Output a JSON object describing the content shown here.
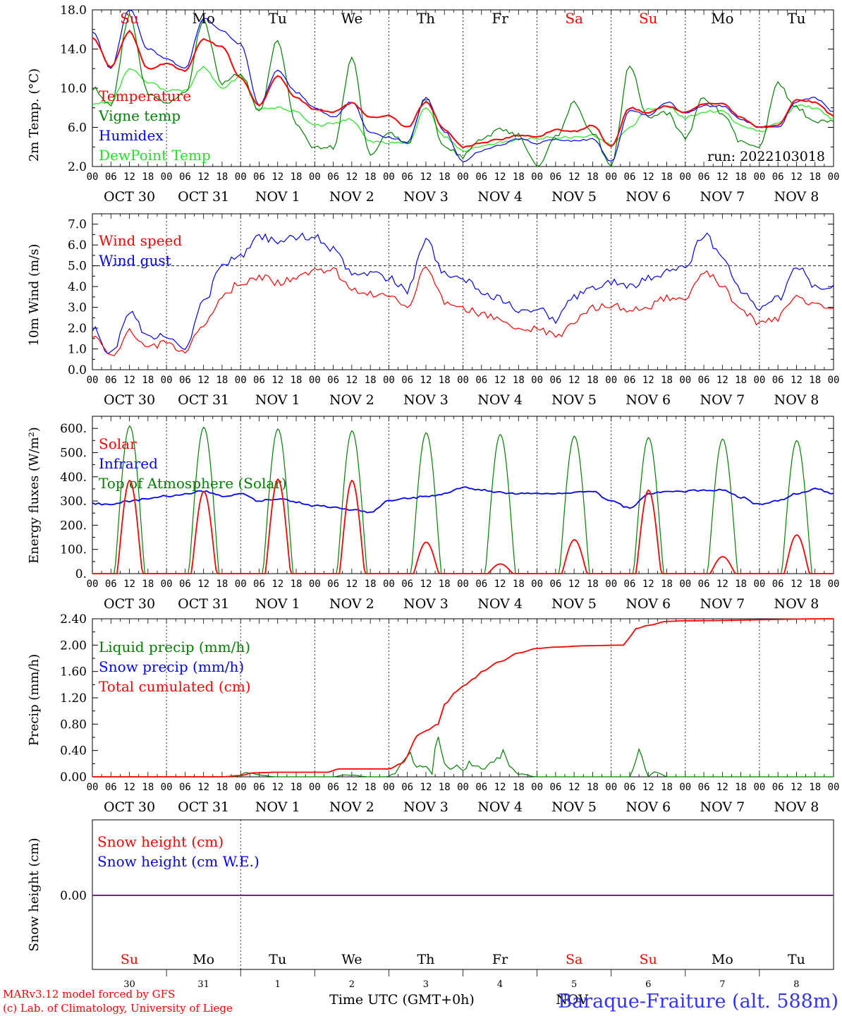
{
  "days": [
    {
      "abbr": "Su",
      "weekend": true,
      "date_label": "OCT 30",
      "day_num": "30"
    },
    {
      "abbr": "Mo",
      "weekend": false,
      "date_label": "OCT 31",
      "day_num": "31"
    },
    {
      "abbr": "Tu",
      "weekend": false,
      "date_label": "NOV  1",
      "day_num": "1"
    },
    {
      "abbr": "We",
      "weekend": false,
      "date_label": "NOV  2",
      "day_num": "2"
    },
    {
      "abbr": "Th",
      "weekend": false,
      "date_label": "NOV  3",
      "day_num": "3"
    },
    {
      "abbr": "Fr",
      "weekend": false,
      "date_label": "NOV  4",
      "day_num": "4"
    },
    {
      "abbr": "Sa",
      "weekend": true,
      "date_label": "NOV  5",
      "day_num": "5"
    },
    {
      "abbr": "Su",
      "weekend": true,
      "date_label": "NOV  6",
      "day_num": "6"
    },
    {
      "abbr": "Mo",
      "weekend": false,
      "date_label": "NOV  7",
      "day_num": "7"
    },
    {
      "abbr": "Tu",
      "weekend": false,
      "date_label": "NOV  8",
      "day_num": "8"
    }
  ],
  "hour_ticks": [
    "00",
    "06",
    "12",
    "18"
  ],
  "run_label": "run: 2022103018",
  "footer": {
    "model_line": "MARv3.12 model forced by GFS",
    "lab_line": "(c) Lab. of Climatology, University of Liege",
    "time_axis_label": "Time UTC (GMT+0h)",
    "month_label": "NOV",
    "station": "Baraque-Fraiture (alt. 588m)"
  },
  "colors": {
    "red": "#ff0000",
    "green": "#008000",
    "blue": "#0000ff",
    "lightgreen": "#1ee61e",
    "purple": "#7a1fa0",
    "weekend": "#ff0000",
    "weekday": "#000000",
    "footer_blue": "#3333ff"
  },
  "chart_data": [
    {
      "id": "temperature",
      "type": "line",
      "ylabel": "2m Temp. (°C)",
      "ylim": [
        2.0,
        18.0
      ],
      "yticks": [
        "2.0",
        "6.0",
        "10.0",
        "14.0",
        "18.0"
      ],
      "ytick_values": [
        2,
        6,
        10,
        14,
        18
      ],
      "x_hours": [
        0,
        6,
        12,
        18,
        24,
        30,
        36,
        42,
        48,
        54,
        60,
        66,
        72,
        78,
        84,
        90,
        96,
        102,
        108,
        114,
        120,
        126,
        132,
        138,
        144,
        150,
        156,
        162,
        168,
        174,
        180,
        186,
        192,
        198,
        204,
        210,
        216,
        222,
        228,
        234,
        240
      ],
      "series": [
        {
          "name": "Temperature",
          "color": "red",
          "values": [
            15.2,
            12.2,
            15.8,
            12.0,
            12.5,
            11.8,
            15.0,
            14.2,
            11.0,
            8.2,
            11.2,
            9.0,
            7.8,
            7.6,
            8.5,
            7.0,
            7.2,
            6.0,
            8.6,
            5.8,
            4.0,
            4.4,
            4.8,
            5.2,
            5.0,
            5.8,
            5.6,
            6.2,
            4.0,
            8.0,
            7.5,
            8.2,
            7.5,
            8.4,
            8.4,
            7.0,
            6.0,
            6.2,
            8.8,
            8.6,
            7.2
          ]
        },
        {
          "name": "Vigne temp",
          "color": "green",
          "values": [
            10.0,
            8.2,
            17.5,
            9.5,
            8.5,
            9.5,
            17.0,
            10.5,
            11.5,
            7.5,
            15.0,
            6.2,
            4.0,
            4.0,
            13.0,
            3.0,
            5.5,
            4.2,
            9.0,
            4.0,
            3.0,
            4.8,
            5.8,
            5.2,
            2.0,
            5.0,
            8.5,
            5.5,
            2.0,
            12.3,
            7.0,
            7.5,
            5.0,
            9.0,
            7.5,
            4.5,
            4.2,
            10.5,
            8.0,
            6.5,
            6.5
          ]
        },
        {
          "name": "Humidex",
          "color": "blue",
          "values": [
            15.8,
            12.0,
            18.2,
            14.0,
            13.0,
            12.0,
            17.2,
            15.8,
            14.5,
            8.2,
            11.8,
            9.6,
            8.0,
            7.0,
            8.6,
            5.5,
            5.0,
            4.5,
            9.0,
            5.6,
            2.5,
            3.6,
            4.2,
            4.8,
            4.4,
            4.8,
            4.6,
            4.8,
            2.5,
            7.8,
            7.2,
            8.6,
            7.4,
            8.2,
            8.2,
            6.8,
            6.0,
            6.0,
            8.6,
            9.0,
            7.6
          ]
        },
        {
          "name": "DewPoint Temp",
          "color": "lightgreen",
          "values": [
            8.4,
            8.6,
            12.0,
            10.6,
            9.8,
            9.8,
            12.2,
            10.0,
            11.2,
            7.8,
            8.0,
            7.6,
            6.2,
            6.4,
            6.8,
            4.6,
            4.4,
            4.3,
            8.0,
            5.0,
            3.6,
            4.0,
            4.4,
            4.8,
            4.8,
            5.0,
            5.0,
            5.2,
            4.2,
            6.0,
            7.8,
            8.2,
            7.0,
            7.6,
            7.6,
            6.2,
            5.6,
            6.4,
            8.2,
            8.0,
            6.8
          ]
        }
      ]
    },
    {
      "id": "wind",
      "type": "line",
      "ylabel": "10m Wind (m/s)",
      "ylim": [
        0.0,
        7.5
      ],
      "yticks": [
        "0.0",
        "1.0",
        "2.0",
        "3.0",
        "4.0",
        "5.0",
        "6.0",
        "7.0"
      ],
      "ytick_values": [
        0,
        1,
        2,
        3,
        4,
        5,
        6,
        7
      ],
      "ref_line": 5.0,
      "x_hours": [
        0,
        6,
        12,
        18,
        24,
        30,
        36,
        42,
        48,
        54,
        60,
        66,
        72,
        78,
        84,
        90,
        96,
        102,
        108,
        114,
        120,
        126,
        132,
        138,
        144,
        150,
        156,
        162,
        168,
        174,
        180,
        186,
        192,
        198,
        204,
        210,
        216,
        222,
        228,
        234,
        240
      ],
      "series": [
        {
          "name": "Wind speed",
          "color": "red",
          "values": [
            1.6,
            0.6,
            1.8,
            1.0,
            1.4,
            0.8,
            2.2,
            3.5,
            4.2,
            4.5,
            4.2,
            4.4,
            4.8,
            4.8,
            3.8,
            3.6,
            3.5,
            3.0,
            4.8,
            3.3,
            2.9,
            2.7,
            2.5,
            2.0,
            2.0,
            1.6,
            2.3,
            3.0,
            3.1,
            2.8,
            3.0,
            3.5,
            3.5,
            4.8,
            4.0,
            2.8,
            2.3,
            2.5,
            3.5,
            3.2,
            3.0
          ]
        },
        {
          "name": "Wind gust",
          "color": "blue",
          "values": [
            2.0,
            0.7,
            2.8,
            1.5,
            1.7,
            1.0,
            3.2,
            5.0,
            5.5,
            6.4,
            6.2,
            6.4,
            6.4,
            5.8,
            4.6,
            4.7,
            4.4,
            3.8,
            6.2,
            4.6,
            4.4,
            3.8,
            3.4,
            2.8,
            3.0,
            2.4,
            3.5,
            4.0,
            4.2,
            4.0,
            4.4,
            4.7,
            5.0,
            6.5,
            5.5,
            3.8,
            3.0,
            3.4,
            5.0,
            4.0,
            4.0
          ]
        }
      ]
    },
    {
      "id": "energy",
      "type": "line",
      "ylabel": "Energy fluxes (W/m²)",
      "ylim": [
        0,
        650
      ],
      "yticks": [
        "0.",
        "100.",
        "200.",
        "300.",
        "400.",
        "500.",
        "600."
      ],
      "ytick_values": [
        0,
        100,
        200,
        300,
        400,
        500,
        600
      ],
      "series": [
        {
          "name": "Solar",
          "color": "red",
          "daily_peaks": [
            385,
            340,
            390,
            385,
            130,
            40,
            140,
            345,
            70,
            160
          ]
        },
        {
          "name": "Infrared",
          "color": "blue",
          "x_hours": [
            0,
            6,
            12,
            18,
            24,
            30,
            36,
            42,
            48,
            54,
            60,
            66,
            72,
            78,
            84,
            90,
            96,
            102,
            108,
            114,
            120,
            126,
            132,
            138,
            144,
            150,
            156,
            162,
            168,
            174,
            180,
            186,
            192,
            198,
            204,
            210,
            216,
            222,
            228,
            234,
            240
          ],
          "values": [
            290,
            285,
            300,
            310,
            320,
            330,
            340,
            320,
            330,
            300,
            310,
            295,
            280,
            275,
            265,
            255,
            300,
            310,
            320,
            330,
            355,
            345,
            335,
            330,
            330,
            330,
            335,
            340,
            300,
            270,
            330,
            340,
            340,
            345,
            345,
            315,
            285,
            300,
            330,
            350,
            330
          ]
        },
        {
          "name": "Top of Atmosphere (Solar)",
          "color": "green",
          "daily_peaks": [
            610,
            605,
            598,
            590,
            582,
            575,
            568,
            562,
            556,
            550
          ]
        }
      ]
    },
    {
      "id": "precip",
      "type": "line",
      "ylabel": "Precip (mm/h)",
      "ylim": [
        0.0,
        2.4
      ],
      "yticks": [
        "0.00",
        "0.40",
        "0.80",
        "1.20",
        "1.60",
        "2.00",
        "2.40"
      ],
      "ytick_values": [
        0,
        0.4,
        0.8,
        1.2,
        1.6,
        2.0,
        2.4
      ],
      "series": [
        {
          "name": "Liquid precip (mm/h)",
          "color": "green",
          "x_hours": [
            0,
            30,
            40,
            46,
            50,
            60,
            70,
            78,
            82,
            90,
            95,
            98,
            102,
            104,
            108,
            110,
            112,
            114,
            116,
            118,
            120,
            122,
            126,
            132,
            138,
            144,
            160,
            174,
            177,
            180,
            182,
            184,
            186,
            192,
            240
          ],
          "values": [
            0,
            0,
            0,
            0,
            0.06,
            0,
            0,
            0,
            0.03,
            0,
            0,
            0.05,
            0.42,
            0.2,
            0.15,
            0.04,
            0.72,
            0.18,
            0.1,
            0.2,
            0.08,
            0.25,
            0.12,
            0.35,
            0.05,
            0,
            0,
            0,
            0.38,
            0,
            0.1,
            0.05,
            0,
            0,
            0
          ]
        },
        {
          "name": "Snow precip (mm/h)",
          "color": "blue",
          "values": []
        },
        {
          "name": "Total cumulated (cm)",
          "color": "red",
          "x_hours": [
            0,
            42,
            48,
            52,
            60,
            76,
            80,
            96,
            100,
            106,
            108,
            112,
            114,
            118,
            120,
            124,
            126,
            132,
            138,
            144,
            150,
            160,
            172,
            174,
            176,
            180,
            186,
            192,
            240
          ],
          "values": [
            0,
            0,
            0.02,
            0.06,
            0.07,
            0.07,
            0.12,
            0.12,
            0.2,
            0.65,
            0.7,
            0.8,
            1.1,
            1.3,
            1.38,
            1.5,
            1.6,
            1.75,
            1.88,
            1.95,
            1.97,
            1.99,
            2.0,
            2.12,
            2.25,
            2.3,
            2.36,
            2.37,
            2.4
          ]
        }
      ]
    },
    {
      "id": "snow",
      "type": "line",
      "ylabel": "Snow height (cm)",
      "yticks": [
        "0.00"
      ],
      "series": [
        {
          "name": "Snow height (cm)",
          "color": "red",
          "values": [
            0,
            0
          ]
        },
        {
          "name": "Snow height (cm W.E.)",
          "color": "blue",
          "values": [
            0,
            0
          ]
        }
      ]
    }
  ]
}
